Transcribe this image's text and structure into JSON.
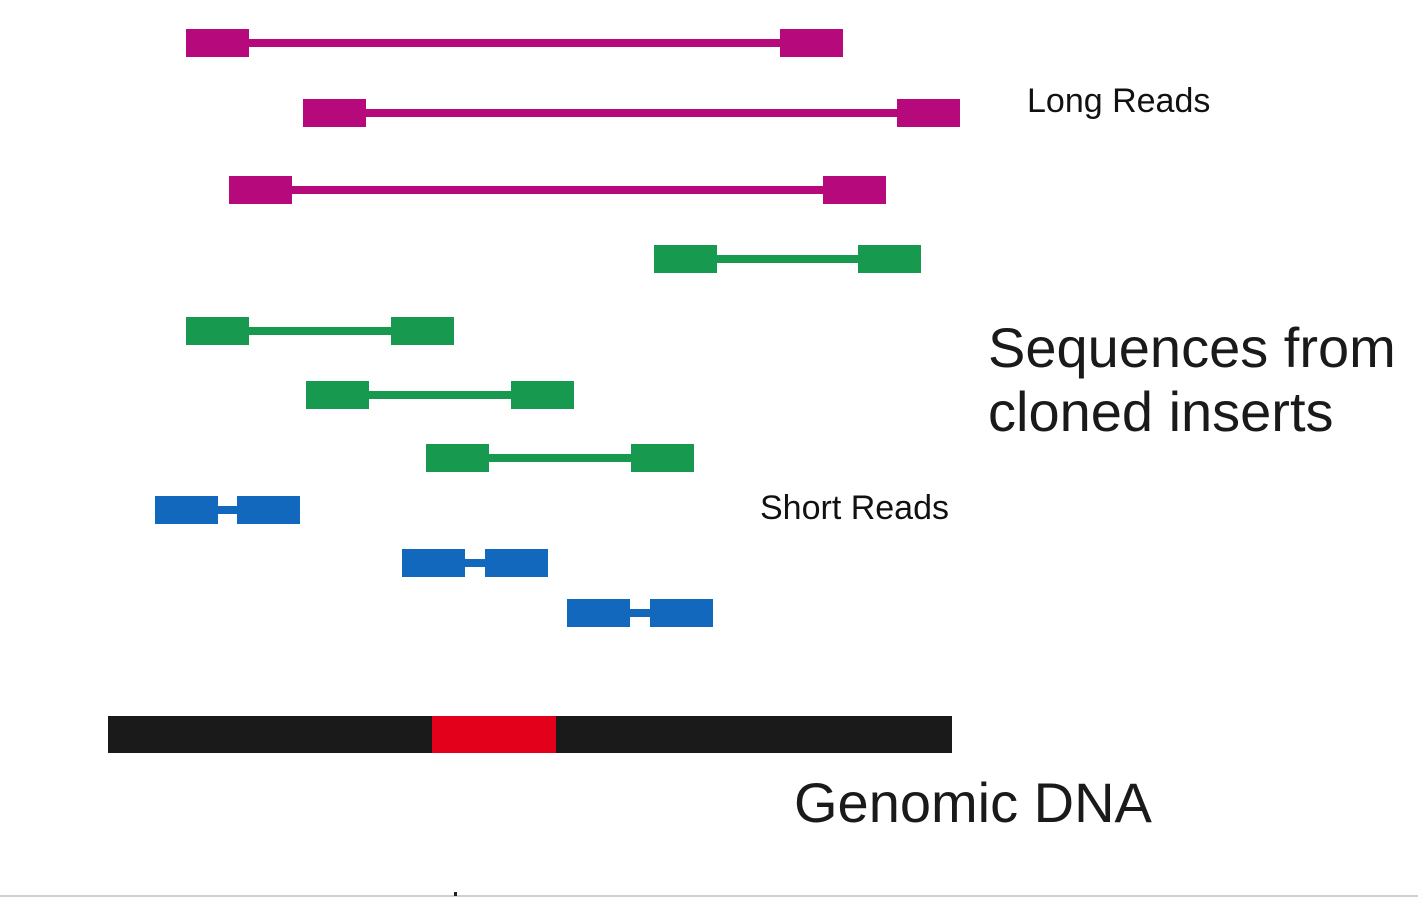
{
  "labels": {
    "long_reads": "Long Reads",
    "short_reads": "Short Reads",
    "sequences_line1": "Sequences from",
    "sequences_line2": "cloned inserts",
    "genomic_dna": "Genomic DNA"
  },
  "colors": {
    "long": "#b5097c",
    "medium": "#17994f",
    "short": "#1268bd",
    "dna": "#1a1a1a",
    "dna_highlight": "#e3001b"
  },
  "reads": [
    {
      "group": "long",
      "start": 186,
      "end": 843
    },
    {
      "group": "long",
      "start": 303,
      "end": 960
    },
    {
      "group": "long",
      "start": 229,
      "end": 886
    },
    {
      "group": "medium",
      "start": 654,
      "end": 921
    },
    {
      "group": "medium",
      "start": 186,
      "end": 454
    },
    {
      "group": "medium",
      "start": 306,
      "end": 574
    },
    {
      "group": "medium",
      "start": 426,
      "end": 694
    },
    {
      "group": "short",
      "start": 155,
      "end": 300
    },
    {
      "group": "short",
      "start": 402,
      "end": 548
    },
    {
      "group": "short",
      "start": 567,
      "end": 713
    }
  ],
  "genomic_dna": {
    "start": 108,
    "end": 952,
    "highlight_start": 432,
    "highlight_end": 556
  }
}
